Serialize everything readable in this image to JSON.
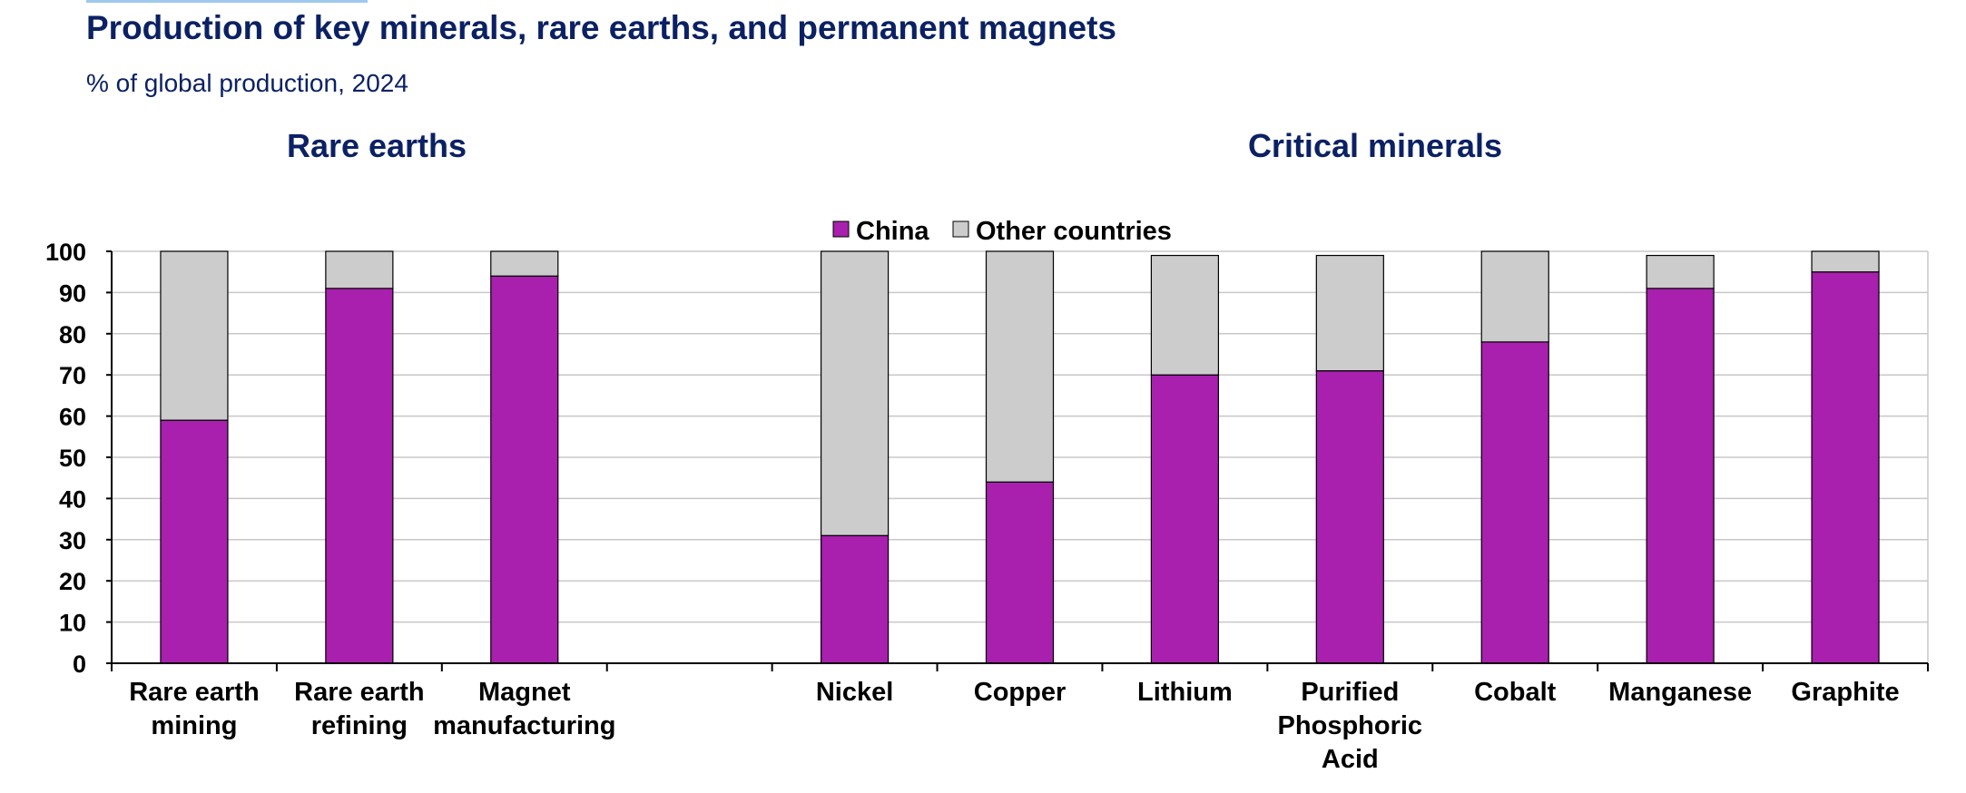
{
  "title": "Production of key minerals, rare earths, and permanent magnets",
  "subtitle": "% of global production, 2024",
  "panels": [
    {
      "title": "Rare earths"
    },
    {
      "title": "Critical minerals"
    }
  ],
  "legend": {
    "china": "China",
    "other": "Other countries"
  },
  "colors": {
    "china": "#a820ad",
    "other": "#cccccc",
    "text": "#0b2163",
    "grid": "#c8c8c8"
  },
  "chart_data": {
    "type": "bar",
    "stacked": true,
    "categories": [
      [
        "Rare earth",
        "mining"
      ],
      [
        "Rare earth",
        "refining"
      ],
      [
        "Magnet",
        "manufacturing"
      ],
      [],
      [
        "Nickel"
      ],
      [
        "Copper"
      ],
      [
        "Lithium"
      ],
      [
        "Purified",
        "Phosphoric",
        "Acid"
      ],
      [
        "Cobalt"
      ],
      [
        "Manganese"
      ],
      [
        "Graphite"
      ]
    ],
    "series": [
      {
        "name": "China",
        "values": [
          59,
          91,
          94,
          null,
          31,
          44,
          70,
          71,
          78,
          91,
          95
        ]
      },
      {
        "name": "Other countries",
        "values": [
          41,
          9,
          6,
          null,
          69,
          56,
          29,
          28,
          22,
          8,
          5
        ]
      }
    ],
    "ylim": [
      0,
      100
    ],
    "yticks": [
      0,
      10,
      20,
      30,
      40,
      50,
      60,
      70,
      80,
      90,
      100
    ],
    "grid": true,
    "legend_position": "top-center"
  }
}
